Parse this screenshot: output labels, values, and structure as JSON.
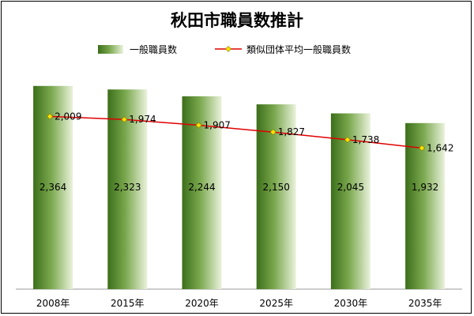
{
  "chart_data": {
    "type": "bar",
    "title": "秋田市職員数推計",
    "categories": [
      "2008年",
      "2015年",
      "2020年",
      "2025年",
      "2030年",
      "2035年"
    ],
    "series": [
      {
        "name": "一般職員数",
        "kind": "bar",
        "values": [
          2364,
          2323,
          2244,
          2150,
          2045,
          1932
        ],
        "labels": [
          "2,364",
          "2,323",
          "2,244",
          "2,150",
          "2,045",
          "1,932"
        ]
      },
      {
        "name": "類似団体平均一般職員数",
        "kind": "line",
        "values": [
          2009,
          1974,
          1907,
          1827,
          1738,
          1642
        ],
        "labels": [
          "2,009",
          "1,974",
          "1,907",
          "1,827",
          "1,738",
          "1,642"
        ]
      }
    ],
    "ylim": [
      0,
      2500
    ],
    "grid": false,
    "legend": "top",
    "colors": {
      "bar_dark": "#3c6e1a",
      "bar_mid": "#7aa84e",
      "bar_light": "#eaf2dc",
      "line": "#e00000",
      "marker": "#ffe100"
    }
  }
}
